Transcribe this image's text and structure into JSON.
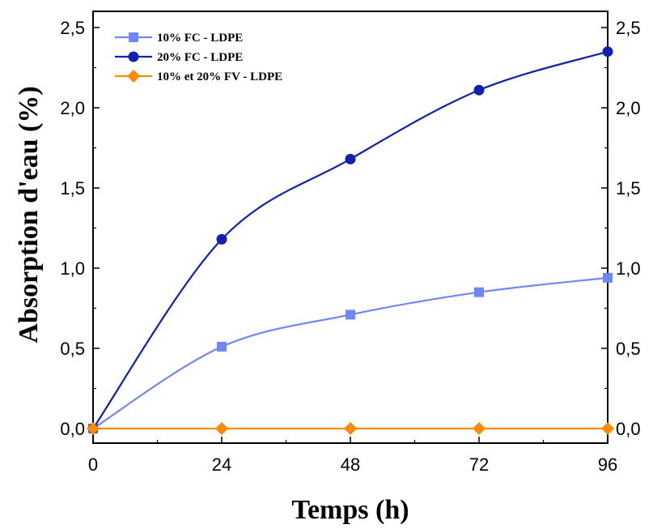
{
  "chart_data": {
    "type": "line",
    "title": "",
    "xlabel": "Temps (h)",
    "ylabel": "Absorption d'eau (%)",
    "x": [
      0,
      24,
      48,
      72,
      96
    ],
    "xlim": [
      0,
      96
    ],
    "ylim": [
      0,
      2.5
    ],
    "x_ticks": [
      "0",
      "24",
      "48",
      "72",
      "96"
    ],
    "y_ticks": [
      "0,0",
      "0,5",
      "1,0",
      "1,5",
      "2,0",
      "2,5"
    ],
    "y_ticks_right": [
      "0,0",
      "0,5",
      "1,0",
      "1,5",
      "2,0",
      "2,5"
    ],
    "grid": false,
    "legend_position": "top-left",
    "series": [
      {
        "name": "10% FC - LDPE",
        "values": [
          0,
          0.51,
          0.71,
          0.85,
          0.94
        ],
        "color": "#6f86ff",
        "marker": "square"
      },
      {
        "name": "20% FC - LDPE",
        "values": [
          0,
          1.18,
          1.68,
          2.11,
          2.35
        ],
        "color": "#1020b0",
        "marker": "circle"
      },
      {
        "name": "10% et 20% FV - LDPE",
        "values": [
          0,
          0,
          0,
          0,
          0
        ],
        "color": "#ff8c00",
        "marker": "diamond"
      }
    ]
  }
}
